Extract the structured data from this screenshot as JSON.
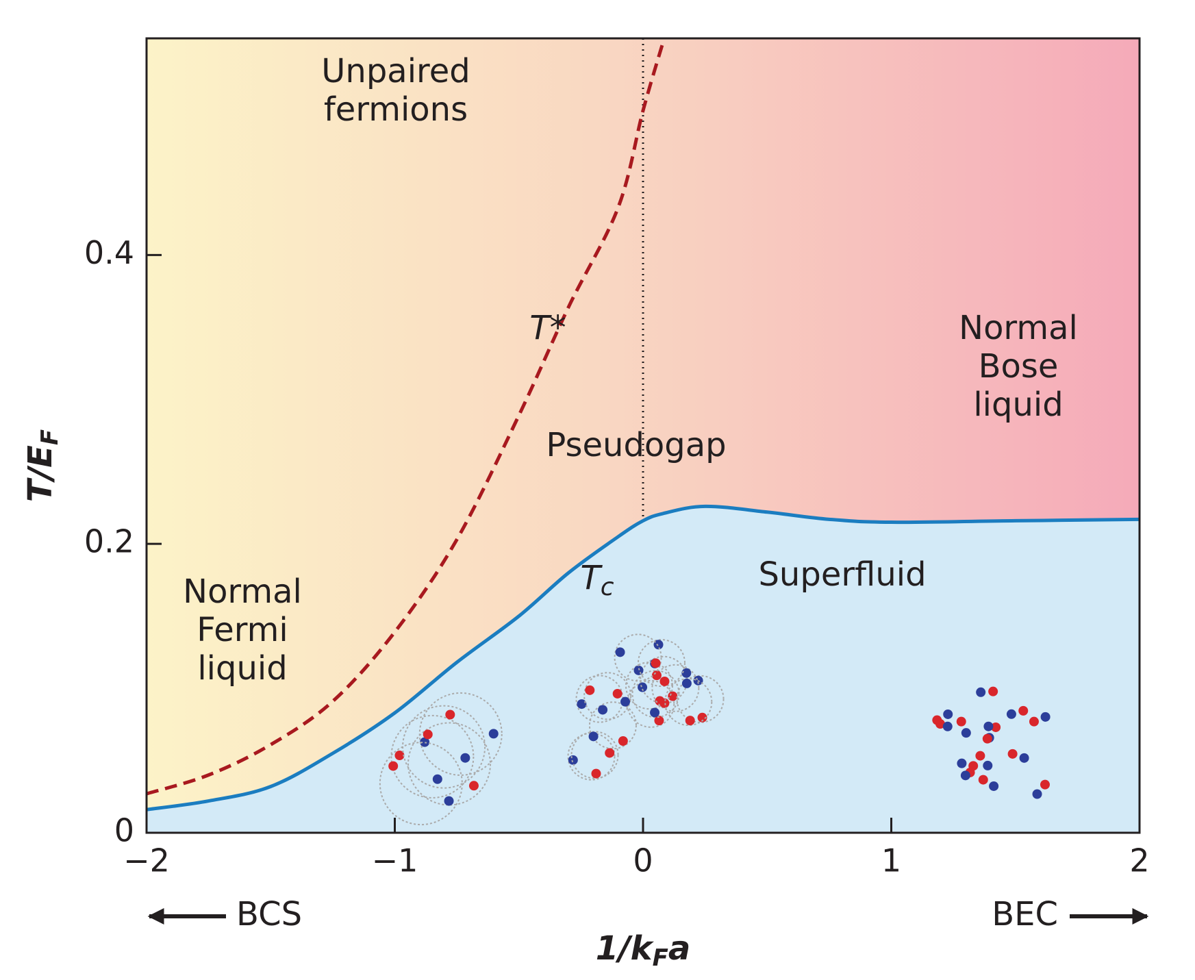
{
  "chart_data": {
    "type": "line",
    "ylabel_parts": [
      "T/E",
      "F"
    ],
    "xlabel_parts": [
      "1/k",
      "F",
      "a"
    ],
    "xlim": [
      -2,
      2
    ],
    "xticks": [
      {
        "value": -2,
        "label": "−2"
      },
      {
        "value": -1,
        "label": "−1"
      },
      0,
      1,
      2
    ],
    "ylim": [
      0,
      0.55
    ],
    "yticks": [
      0,
      0.2,
      0.4
    ],
    "x": [
      -2,
      -1.75,
      -1.5,
      -1.25,
      -1,
      -0.75,
      -0.5,
      -0.3,
      -0.1,
      0,
      0.08,
      0.25,
      0.5,
      0.75,
      1,
      1.5,
      2
    ],
    "series": [
      {
        "name": "T*",
        "color": "#a8191f",
        "dashed": true,
        "values": [
          0.027,
          0.04,
          0.061,
          0.091,
          0.139,
          0.203,
          0.289,
          0.364,
          0.433,
          0.5,
          0.547,
          null,
          null,
          null,
          null,
          null,
          null
        ]
      },
      {
        "name": "T",
        "name_sub": "c",
        "color": "#1b7dc0",
        "dashed": false,
        "fill": "#d3eaf7",
        "values": [
          0.016,
          0.022,
          0.032,
          0.055,
          0.083,
          0.118,
          0.15,
          0.18,
          0.205,
          0.216,
          0.221,
          0.226,
          0.222,
          0.217,
          0.215,
          0.216,
          0.217
        ]
      }
    ],
    "annotations": {
      "unpaired": [
        "Unpaired",
        "fermions"
      ],
      "fermi": [
        "Normal",
        "Fermi",
        "liquid"
      ],
      "pseudogap": "Pseudogap",
      "bose": [
        "Normal",
        "Bose",
        "liquid"
      ],
      "superfluid": "Superfluid"
    },
    "left_label": "BCS",
    "right_label": "BEC"
  }
}
